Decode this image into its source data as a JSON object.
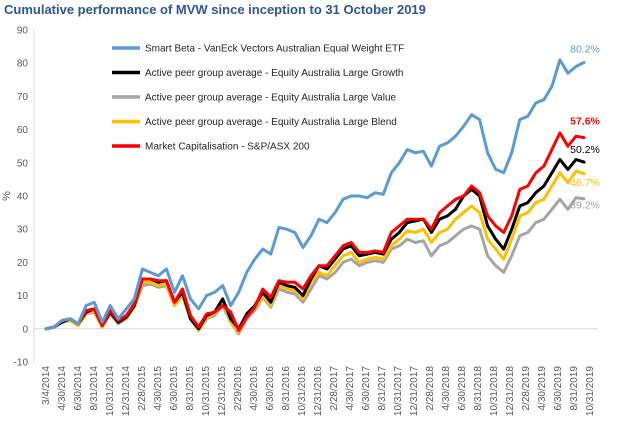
{
  "chart_data": {
    "type": "line",
    "title": "Cumulative performance of MVW since inception to 31 October 2019",
    "ylabel": "%",
    "xlabel": "",
    "ylim": [
      -10,
      90
    ],
    "yticks": [
      -10,
      0,
      10,
      20,
      30,
      40,
      50,
      60,
      70,
      80,
      90
    ],
    "grid": false,
    "legend_position": "top-left",
    "x_tick_labels": [
      "3/4/2014",
      "4/30/2014",
      "6/30/2014",
      "8/31/2014",
      "10/31/2014",
      "12/31/2014",
      "2/28/2015",
      "4/30/2015",
      "6/30/2015",
      "8/31/2015",
      "10/31/2015",
      "12/31/2015",
      "2/29/2016",
      "4/30/2016",
      "6/30/2016",
      "8/31/2016",
      "10/31/2016",
      "12/31/2016",
      "2/28/2017",
      "4/30/2017",
      "6/30/2017",
      "8/31/2017",
      "10/31/2017",
      "12/31/2017",
      "2/28/2018",
      "4/30/2018",
      "6/30/2018",
      "8/31/2018",
      "10/31/2018",
      "12/31/2018",
      "2/28/2019",
      "4/30/2019",
      "6/30/2019",
      "8/31/2019",
      "10/31/2019"
    ],
    "series": [
      {
        "name": "Smart Beta - VanEck Vectors Australian Equal Weight ETF",
        "color": "#5b9bd5",
        "end_label": "80.2%",
        "values": [
          0,
          0.5,
          2.5,
          3,
          1.5,
          7,
          8,
          2,
          7,
          3,
          6,
          9,
          18,
          17,
          16,
          18,
          11,
          16,
          9,
          6,
          10,
          11,
          13,
          7,
          11,
          17,
          21,
          24,
          22.5,
          30.5,
          30,
          29,
          24.5,
          28,
          33,
          32,
          35,
          39,
          40,
          40,
          39.5,
          41,
          40.5,
          47,
          50,
          54,
          53,
          53.5,
          49,
          55,
          56,
          58,
          61,
          64.5,
          63,
          53,
          48,
          47,
          53,
          63,
          64,
          68,
          69,
          73,
          81,
          77,
          79,
          80.2
        ]
      },
      {
        "name": "Active peer group average - Equity Australia Large Growth",
        "color": "#000000",
        "end_label": "50.2%",
        "values": [
          0,
          0.5,
          2,
          3,
          1.5,
          5,
          6,
          1,
          5,
          2,
          3.5,
          7,
          15,
          15,
          14,
          14.5,
          8,
          11,
          3,
          0,
          4,
          5,
          9,
          3,
          0,
          4.5,
          7,
          11,
          8,
          14,
          13,
          12.5,
          10,
          15,
          19,
          18,
          21,
          24,
          25,
          22,
          22.5,
          23,
          22.5,
          27,
          29,
          32,
          32.5,
          33,
          29,
          33,
          34,
          36,
          40,
          42,
          40,
          31,
          27,
          24,
          30,
          37,
          38,
          41,
          43,
          47,
          51,
          48,
          51,
          50.2
        ]
      },
      {
        "name": "Active peer group average - Equity Australia Large Value",
        "color": "#a5a5a5",
        "end_label": "39.2%",
        "values": [
          0,
          0.5,
          2,
          2.5,
          1,
          4.5,
          5,
          0.5,
          4.5,
          1.5,
          3,
          6.5,
          13,
          13.5,
          12.5,
          13,
          7,
          10,
          3,
          -0.5,
          3,
          4,
          7,
          2,
          -1.5,
          3,
          5.5,
          9.5,
          6.5,
          12,
          11,
          10.5,
          8,
          12,
          16,
          15,
          17,
          20,
          21,
          19,
          20,
          20.5,
          20,
          24,
          25,
          27,
          26,
          26.5,
          22,
          25,
          26,
          28,
          30,
          31,
          30,
          22,
          19,
          17,
          22,
          28,
          29,
          32,
          33,
          36,
          39,
          36,
          39.5,
          39.2
        ]
      },
      {
        "name": "Active peer group average - Equity Australia Large Blend",
        "color": "#ffc000",
        "end_label": "46.7%",
        "values": [
          0,
          0.5,
          2,
          2.5,
          1,
          4.5,
          5.5,
          0.5,
          5,
          2,
          3,
          6.5,
          14,
          14,
          13,
          13.5,
          7,
          10,
          3,
          -0.5,
          3.5,
          4.5,
          8,
          2,
          -1,
          4,
          6,
          10,
          7,
          13,
          12,
          11.5,
          9,
          14,
          17,
          16,
          19,
          22,
          23,
          20,
          21,
          21.5,
          21,
          25,
          27,
          29.5,
          29,
          30,
          26,
          29,
          30,
          33,
          35,
          37,
          35,
          27,
          24,
          21,
          27,
          34,
          35,
          38,
          39,
          43,
          47,
          44,
          47.5,
          46.7
        ]
      },
      {
        "name": "Market Capitalisation - S&P/ASX 200",
        "color": "#ff0000",
        "end_label": "57.6%",
        "values": [
          0,
          0.5,
          2.5,
          3,
          1.5,
          5.5,
          6,
          1,
          5.5,
          2.5,
          4,
          7.5,
          15,
          15,
          14.5,
          14.5,
          8,
          12,
          4,
          0.5,
          4.5,
          5,
          7,
          5,
          -0.5,
          3.5,
          6.5,
          12,
          9.5,
          14.5,
          14,
          14,
          12,
          16,
          19,
          19,
          22,
          25,
          26,
          23,
          23,
          23.5,
          23,
          29,
          31,
          33,
          33,
          33,
          30,
          35,
          37,
          39,
          40,
          43,
          41,
          34,
          31,
          29,
          34,
          42,
          43,
          47,
          49,
          54,
          59,
          55,
          58,
          57.6
        ]
      }
    ]
  }
}
